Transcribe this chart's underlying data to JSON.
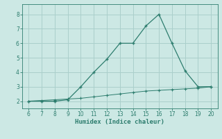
{
  "x": [
    6,
    7,
    8,
    9,
    10,
    11,
    12,
    13,
    14,
    15,
    16,
    17,
    18,
    19,
    20
  ],
  "y_main": [
    2.0,
    2.0,
    2.0,
    2.1,
    3.0,
    4.0,
    4.9,
    6.0,
    6.0,
    7.2,
    8.0,
    6.0,
    4.1,
    3.0,
    3.0
  ],
  "y_secondary": [
    2.0,
    2.05,
    2.1,
    2.15,
    2.2,
    2.3,
    2.4,
    2.5,
    2.6,
    2.7,
    2.75,
    2.8,
    2.85,
    2.9,
    3.0
  ],
  "xlabel": "Humidex (Indice chaleur)",
  "xlim": [
    5.5,
    20.5
  ],
  "ylim": [
    1.5,
    8.7
  ],
  "yticks": [
    2,
    3,
    4,
    5,
    6,
    7,
    8
  ],
  "xticks": [
    6,
    7,
    8,
    9,
    10,
    11,
    12,
    13,
    14,
    15,
    16,
    17,
    18,
    19,
    20
  ],
  "line_color": "#2d7d6e",
  "bg_color": "#cce8e4",
  "grid_color": "#aacfcb",
  "marker": "+"
}
